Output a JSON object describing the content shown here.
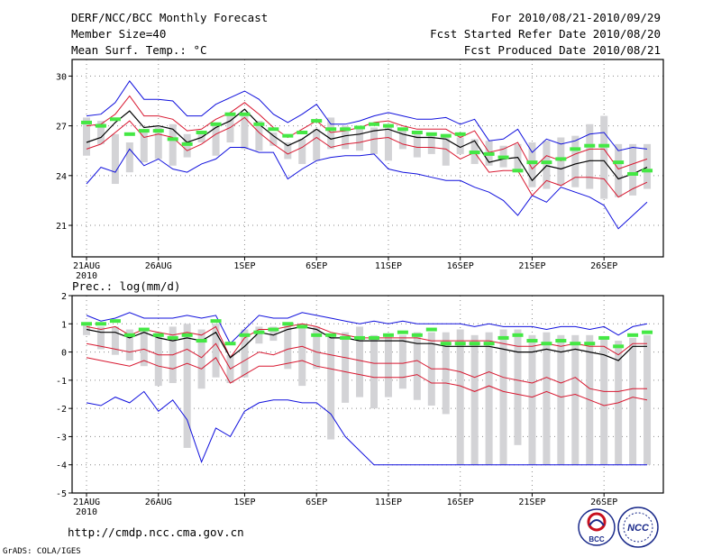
{
  "header": {
    "title": "DERF/NCC/BCC Monthly Forecast",
    "member_size": "Member Size=40",
    "period": "For 2010/08/21-2010/09/29",
    "started": "Fcst Started Refer Date 2010/08/20",
    "produced": "Fcst Produced Date 2010/08/21"
  },
  "footer": {
    "url": "http://cmdp.ncc.cma.gov.cn",
    "grads": "GrADS: COLA/IGES",
    "logo_left": "BCC",
    "logo_right": "NCC"
  },
  "colors": {
    "bar": "#d3d3d6",
    "climo": "#44e844",
    "minmax": "#1010dd",
    "band": "#d81830",
    "mean": "#000000"
  },
  "chart_data": [
    {
      "type": "line",
      "title": "Mean Surf. Temp.: °C",
      "xlabel": "",
      "ylabel": "",
      "days": 40,
      "x_ticks": [
        {
          "day": 1,
          "label": "21AUG",
          "sub": "2010"
        },
        {
          "day": 6,
          "label": "26AUG",
          "sub": ""
        },
        {
          "day": 12,
          "label": "1SEP",
          "sub": ""
        },
        {
          "day": 17,
          "label": "6SEP",
          "sub": ""
        },
        {
          "day": 22,
          "label": "11SEP",
          "sub": ""
        },
        {
          "day": 27,
          "label": "16SEP",
          "sub": ""
        },
        {
          "day": 32,
          "label": "21SEP",
          "sub": ""
        },
        {
          "day": 37,
          "label": "26SEP",
          "sub": ""
        }
      ],
      "y_ticks": [
        21,
        24,
        27,
        30
      ],
      "ylim": [
        19.1,
        31.0
      ],
      "series": [
        {
          "name": "max",
          "values": [
            27.6,
            27.7,
            28.4,
            29.7,
            28.6,
            28.6,
            28.5,
            27.6,
            27.6,
            28.3,
            28.7,
            29.1,
            28.6,
            27.7,
            27.2,
            27.7,
            28.3,
            27.1,
            27.1,
            27.3,
            27.6,
            27.8,
            27.6,
            27.4,
            27.4,
            27.5,
            27.1,
            27.4,
            26.1,
            26.2,
            26.8,
            25.4,
            26.2,
            25.9,
            26.1,
            26.5,
            26.6,
            25.5,
            25.7,
            25.6
          ]
        },
        {
          "name": "upper",
          "values": [
            27.0,
            27.1,
            27.7,
            28.8,
            27.6,
            27.6,
            27.4,
            26.7,
            26.8,
            27.4,
            27.8,
            28.4,
            27.7,
            26.9,
            26.3,
            26.8,
            27.3,
            26.6,
            26.7,
            26.9,
            27.2,
            27.3,
            27.0,
            26.8,
            26.8,
            26.8,
            26.3,
            26.7,
            25.4,
            25.6,
            26.0,
            24.4,
            25.2,
            24.9,
            25.3,
            25.6,
            25.6,
            24.4,
            24.7,
            25.0
          ]
        },
        {
          "name": "mean",
          "values": [
            26.0,
            26.3,
            27.2,
            27.9,
            26.9,
            27.0,
            26.8,
            26.0,
            26.3,
            26.9,
            27.3,
            28.0,
            27.1,
            26.4,
            25.8,
            26.2,
            26.8,
            26.2,
            26.4,
            26.5,
            26.7,
            26.8,
            26.5,
            26.3,
            26.3,
            26.2,
            25.7,
            26.1,
            24.8,
            25.0,
            25.1,
            23.7,
            24.6,
            24.4,
            24.7,
            24.9,
            24.9,
            23.8,
            24.1,
            24.5
          ]
        },
        {
          "name": "lower",
          "values": [
            25.6,
            25.9,
            26.6,
            27.3,
            26.3,
            26.5,
            26.3,
            25.5,
            25.9,
            26.5,
            26.9,
            27.5,
            26.6,
            25.9,
            25.3,
            25.7,
            26.3,
            25.7,
            25.9,
            26.0,
            26.2,
            26.3,
            25.9,
            25.7,
            25.7,
            25.6,
            25.0,
            25.4,
            24.2,
            24.3,
            24.3,
            22.8,
            23.7,
            23.4,
            23.9,
            23.9,
            23.8,
            22.7,
            23.2,
            23.6
          ]
        },
        {
          "name": "min",
          "values": [
            23.5,
            24.5,
            24.2,
            25.6,
            24.6,
            25.0,
            24.4,
            24.2,
            24.7,
            25.0,
            25.7,
            25.7,
            25.4,
            25.4,
            23.8,
            24.4,
            24.9,
            25.1,
            25.2,
            25.2,
            25.3,
            24.4,
            24.2,
            24.1,
            23.9,
            23.7,
            23.7,
            23.3,
            23.0,
            22.5,
            21.6,
            22.8,
            22.4,
            23.3,
            23.0,
            22.7,
            22.2,
            20.8,
            21.6,
            22.4
          ]
        },
        {
          "name": "climatology",
          "values": [
            27.2,
            27.0,
            27.4,
            26.5,
            26.7,
            26.7,
            26.2,
            25.9,
            26.6,
            27.1,
            27.7,
            27.7,
            27.1,
            26.8,
            26.4,
            26.6,
            27.3,
            26.8,
            26.8,
            26.9,
            27.1,
            27.0,
            26.8,
            26.6,
            26.5,
            26.4,
            26.5,
            25.4,
            25.3,
            25.1,
            24.3,
            24.8,
            24.8,
            25.0,
            25.6,
            25.8,
            25.8,
            24.8,
            24.1,
            24.3
          ]
        }
      ],
      "box": {
        "top": [
          27.5,
          27.3,
          26.5,
          26.0,
          26.6,
          26.9,
          27.1,
          26.5,
          26.5,
          27.2,
          27.8,
          27.6,
          27.3,
          26.6,
          26.0,
          26.2,
          26.8,
          27.5,
          27.0,
          26.8,
          26.9,
          27.1,
          26.8,
          26.6,
          26.6,
          26.5,
          26.3,
          26.2,
          26.1,
          25.8,
          25.9,
          26.0,
          26.1,
          26.3,
          26.4,
          27.1,
          27.6,
          25.9,
          25.9,
          25.9
        ],
        "bottom": [
          25.2,
          25.9,
          23.5,
          24.2,
          24.8,
          25.0,
          24.6,
          25.1,
          26.0,
          25.2,
          26.0,
          25.6,
          25.5,
          25.8,
          25.0,
          24.7,
          24.9,
          25.6,
          25.6,
          25.5,
          25.3,
          24.9,
          25.6,
          25.1,
          25.3,
          24.6,
          25.3,
          24.7,
          24.6,
          24.5,
          24.3,
          23.3,
          23.2,
          23.4,
          23.3,
          23.2,
          22.6,
          22.7,
          22.8,
          23.2
        ]
      }
    },
    {
      "type": "line",
      "title": "Prec.: log(mm/d)",
      "xlabel": "",
      "ylabel": "",
      "days": 40,
      "x_ticks": [
        {
          "day": 1,
          "label": "21AUG",
          "sub": "2010"
        },
        {
          "day": 6,
          "label": "26AUG",
          "sub": ""
        },
        {
          "day": 12,
          "label": "1SEP",
          "sub": ""
        },
        {
          "day": 17,
          "label": "6SEP",
          "sub": ""
        },
        {
          "day": 22,
          "label": "11SEP",
          "sub": ""
        },
        {
          "day": 27,
          "label": "16SEP",
          "sub": ""
        },
        {
          "day": 32,
          "label": "21SEP",
          "sub": ""
        },
        {
          "day": 37,
          "label": "26SEP",
          "sub": ""
        }
      ],
      "y_ticks": [
        -5,
        -4,
        -3,
        -2,
        -1,
        0,
        1,
        2
      ],
      "ylim": [
        -5,
        2
      ],
      "series": [
        {
          "name": "max",
          "values": [
            1.3,
            1.1,
            1.2,
            1.4,
            1.2,
            1.2,
            1.2,
            1.3,
            1.2,
            1.3,
            0.3,
            0.8,
            1.3,
            1.2,
            1.2,
            1.4,
            1.3,
            1.2,
            1.1,
            1.0,
            1.1,
            1.0,
            1.1,
            1.0,
            1.0,
            1.0,
            1.0,
            0.9,
            1.0,
            0.9,
            0.9,
            0.9,
            0.8,
            0.9,
            0.9,
            0.8,
            0.9,
            0.6,
            0.9,
            1.0
          ]
        },
        {
          "name": "upper",
          "values": [
            0.9,
            0.8,
            0.9,
            0.6,
            0.8,
            0.7,
            0.6,
            0.7,
            0.6,
            0.9,
            -0.2,
            0.5,
            0.8,
            0.8,
            0.9,
            1.0,
            0.9,
            0.7,
            0.6,
            0.5,
            0.5,
            0.5,
            0.5,
            0.5,
            0.4,
            0.4,
            0.4,
            0.4,
            0.4,
            0.3,
            0.2,
            0.2,
            0.3,
            0.2,
            0.3,
            0.2,
            0.2,
            -0.1,
            0.3,
            0.3
          ]
        },
        {
          "name": "mean",
          "values": [
            0.8,
            0.7,
            0.7,
            0.5,
            0.7,
            0.5,
            0.4,
            0.5,
            0.4,
            0.7,
            -0.2,
            0.2,
            0.7,
            0.6,
            0.8,
            0.9,
            0.8,
            0.5,
            0.5,
            0.4,
            0.4,
            0.4,
            0.4,
            0.3,
            0.3,
            0.2,
            0.2,
            0.2,
            0.2,
            0.1,
            0.0,
            0.0,
            0.1,
            0.0,
            0.1,
            0.0,
            -0.1,
            -0.3,
            0.2,
            0.2
          ]
        },
        {
          "name": "lower",
          "values": [
            0.3,
            0.2,
            0.1,
            0.0,
            0.1,
            -0.1,
            -0.1,
            0.1,
            -0.2,
            0.3,
            -0.6,
            -0.3,
            0.0,
            -0.1,
            0.1,
            0.2,
            0.0,
            -0.1,
            -0.2,
            -0.3,
            -0.4,
            -0.4,
            -0.4,
            -0.3,
            -0.6,
            -0.6,
            -0.7,
            -0.9,
            -0.7,
            -0.9,
            -1.0,
            -1.1,
            -0.9,
            -1.1,
            -0.9,
            -1.3,
            -1.4,
            -1.4,
            -1.3,
            -1.3
          ]
        },
        {
          "name": "band_low",
          "values": [
            -0.2,
            -0.3,
            -0.4,
            -0.5,
            -0.3,
            -0.5,
            -0.6,
            -0.4,
            -0.6,
            -0.2,
            -1.1,
            -0.8,
            -0.5,
            -0.5,
            -0.4,
            -0.3,
            -0.5,
            -0.6,
            -0.7,
            -0.8,
            -0.9,
            -0.9,
            -0.9,
            -0.8,
            -1.1,
            -1.1,
            -1.2,
            -1.4,
            -1.2,
            -1.4,
            -1.5,
            -1.6,
            -1.4,
            -1.6,
            -1.5,
            -1.7,
            -1.9,
            -1.8,
            -1.6,
            -1.7
          ]
        },
        {
          "name": "min",
          "values": [
            -1.8,
            -1.9,
            -1.6,
            -1.8,
            -1.4,
            -2.1,
            -1.7,
            -2.4,
            -3.9,
            -2.7,
            -3.0,
            -2.1,
            -1.8,
            -1.7,
            -1.7,
            -1.8,
            -1.8,
            -2.2,
            -3.0,
            -3.5,
            -4.0,
            -4.0,
            -4.0,
            -4.0,
            -4.0,
            -4.0,
            -4.0,
            -4.0,
            -4.0,
            -4.0,
            -4.0,
            -4.0,
            -4.0,
            -4.0,
            -4.0,
            -4.0,
            -4.0,
            -4.0,
            -4.0,
            -4.0
          ]
        },
        {
          "name": "climatology",
          "values": [
            1.0,
            1.0,
            1.1,
            0.6,
            0.8,
            0.6,
            0.5,
            0.6,
            0.4,
            1.1,
            0.3,
            0.6,
            0.7,
            0.8,
            1.0,
            0.9,
            0.6,
            0.6,
            0.5,
            0.5,
            0.5,
            0.6,
            0.7,
            0.6,
            0.8,
            0.3,
            0.3,
            0.3,
            0.3,
            0.5,
            0.6,
            0.4,
            0.3,
            0.4,
            0.3,
            0.3,
            0.5,
            0.2,
            0.6,
            0.7
          ]
        }
      ],
      "box": {
        "top": [
          1.0,
          0.9,
          0.9,
          0.8,
          0.8,
          0.7,
          0.9,
          1.0,
          0.8,
          1.0,
          -0.1,
          0.8,
          0.9,
          0.9,
          1.0,
          1.0,
          0.9,
          0.6,
          0.7,
          0.9,
          0.6,
          0.6,
          0.6,
          0.7,
          0.7,
          0.7,
          0.8,
          0.6,
          0.7,
          0.8,
          0.8,
          0.6,
          0.7,
          0.6,
          0.6,
          0.6,
          0.5,
          0.4,
          0.5,
          0.6
        ]
      },
      "box_bottom_note": "see bottom list",
      "box_bottom": [
        0.6,
        0.1,
        -0.1,
        -0.3,
        -0.5,
        -1.2,
        -1.1,
        -3.4,
        -1.3,
        -0.9,
        -1.1,
        -0.9,
        0.3,
        0.4,
        -0.6,
        -1.2,
        -0.6,
        -3.1,
        -1.8,
        -1.6,
        -2.0,
        -1.6,
        -1.3,
        -1.7,
        -1.9,
        -2.2,
        -4.0,
        -4.0,
        -4.0,
        -4.0,
        -3.3,
        -4.0,
        -4.0,
        -4.0,
        -4.0,
        -4.0,
        -4.0,
        -4.0,
        -4.0,
        -4.0
      ]
    }
  ]
}
